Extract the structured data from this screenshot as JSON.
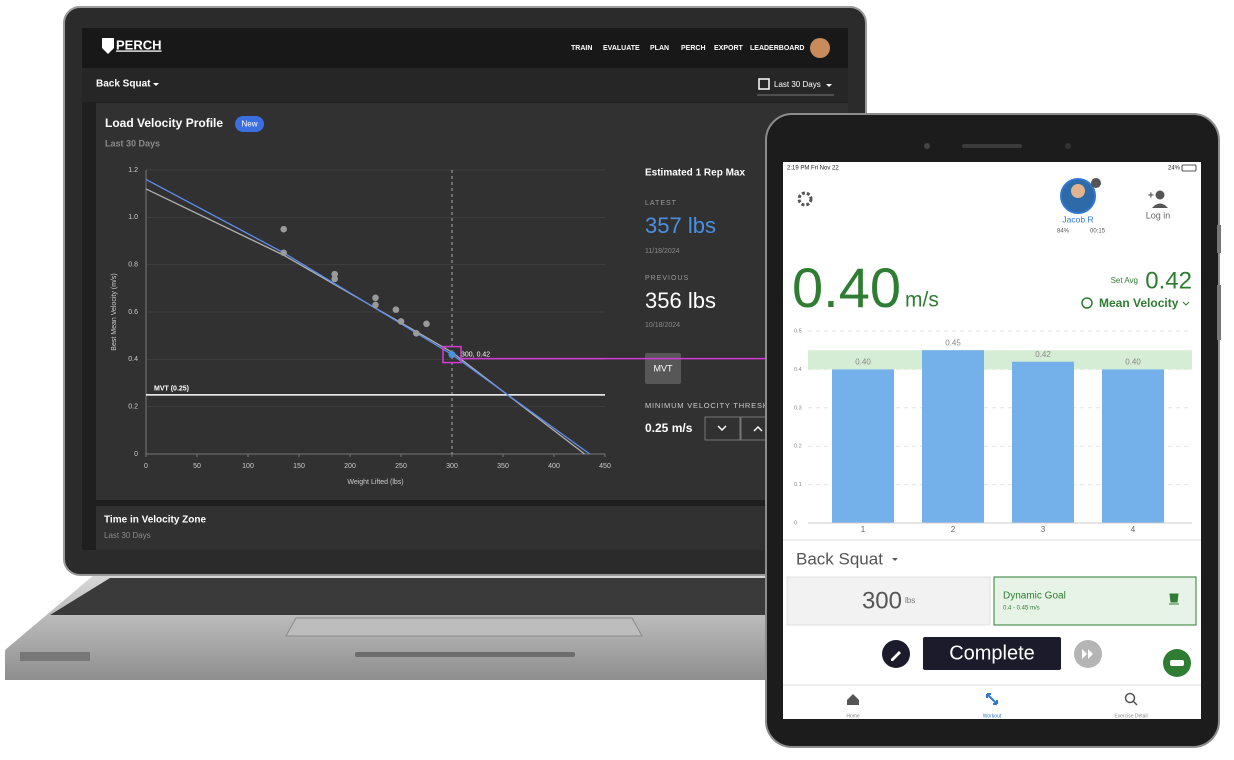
{
  "laptop": {
    "brand": "PERCH",
    "nav": [
      "TRAIN",
      "EVALUATE",
      "PLAN",
      "PERCH",
      "EXPORT",
      "LEADERBOARD"
    ],
    "exercise": "Back Squat",
    "date_range": "Last 30 Days",
    "card": {
      "title": "Load Velocity Profile",
      "badge": "New",
      "subtitle": "Last 30 Days"
    },
    "chart_data": {
      "type": "scatter",
      "x_label": "Weight Lifted (lbs)",
      "y_label": "Best Mean Velocity (m/s)",
      "xlim": [
        0,
        450
      ],
      "xticks": [
        0,
        50,
        100,
        150,
        200,
        250,
        300,
        350,
        400,
        450
      ],
      "ylim": [
        0,
        1.2
      ],
      "yticks": [
        0,
        0.2,
        0.4,
        0.6,
        0.8,
        {
          "value": 1.0,
          "label": "1.0"
        },
        1.2
      ],
      "grid": true,
      "points": {
        "color": "#9a9a9a",
        "x": [
          135,
          135,
          185,
          185,
          225,
          225,
          245,
          250,
          265,
          275
        ],
        "y": [
          0.95,
          0.85,
          0.76,
          0.74,
          0.66,
          0.63,
          0.61,
          0.56,
          0.51,
          0.55
        ]
      },
      "lines": [
        {
          "color": "#b0b0b0",
          "x": [
            0,
            135,
            300,
            430
          ],
          "y": [
            1.12,
            0.84,
            0.43,
            0
          ]
        },
        {
          "color": "#5b8def",
          "x": [
            0,
            135,
            300,
            435
          ],
          "y": [
            1.16,
            0.85,
            0.42,
            0
          ]
        }
      ],
      "highlight": {
        "x": 300,
        "y": 0.42,
        "label": "300, 0.42",
        "color": "#4a90e2"
      },
      "mvt": {
        "value": 0.25,
        "label": "MVT (0.25)"
      }
    },
    "one_rm": {
      "title": "Estimated 1 Rep Max",
      "latest_label": "LATEST",
      "latest": "357 lbs",
      "latest_date": "11/18/2024",
      "previous_label": "PREVIOUS",
      "previous": "356 lbs",
      "previous_date": "10/18/2024",
      "mvt_button": "MVT",
      "threshold_label": "MINIMUM VELOCITY THRESH",
      "threshold": "0.25 m/s"
    },
    "section2": {
      "title": "Time in Velocity Zone",
      "subtitle": "Last 30 Days"
    }
  },
  "tablet": {
    "status": {
      "time": "2:19 PM  Fri Nov 22",
      "battery": "24%"
    },
    "user": {
      "name": "Jacob R",
      "stat1": "84%",
      "stat2": "00:15"
    },
    "login": "Log in",
    "velocity": "0.40",
    "unit": "m/s",
    "set_avg_label": "Set Avg",
    "set_avg": "0.42",
    "metric": "Mean Velocity",
    "chart_data": {
      "type": "bar",
      "categories": [
        "1",
        "2",
        "3",
        "4"
      ],
      "values": [
        0.4,
        0.45,
        0.42,
        0.4
      ],
      "value_labels": [
        "0.40",
        "0.45",
        "0.42",
        "0.40"
      ],
      "color": "#74b0ea",
      "ylim": [
        0,
        0.5
      ],
      "yticks": [
        0,
        0.1,
        0.2,
        0.3,
        0.4,
        0.5
      ],
      "grid": true,
      "band": {
        "from": 0.4,
        "to": 0.45,
        "color": "#d4edd4"
      }
    },
    "exercise": "Back Squat",
    "weight": "300",
    "weight_unit": "lbs",
    "goal": {
      "title": "Dynamic Goal",
      "range": "0.4 - 0.45 m/s"
    },
    "complete": "Complete",
    "nav": [
      "Home",
      "Workout",
      "Exercise Detail"
    ]
  }
}
